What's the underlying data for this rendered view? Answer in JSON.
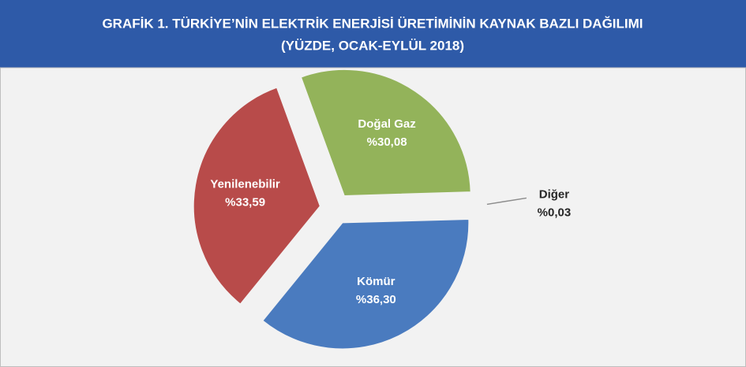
{
  "chart_data": {
    "type": "pie",
    "title": "GRAFİK 1. TÜRKİYE’NİN ELEKTRİK ENERJİSİ ÜRETİMİNİN KAYNAK BAZLI DAĞILIMI",
    "subtitle": "(YÜZDE, OCAK-EYLÜL 2018)",
    "categories": [
      "Doğal Gaz",
      "Diğer",
      "Kömür",
      "Yenilenebilir"
    ],
    "values": [
      30.08,
      0.03,
      36.3,
      33.59
    ],
    "value_labels": [
      "%30,08",
      "%0,03",
      "%36,30",
      "%33,59"
    ],
    "colors": [
      "#93b35a",
      "#8c8c8c",
      "#4a7bbf",
      "#b84b4a"
    ]
  }
}
